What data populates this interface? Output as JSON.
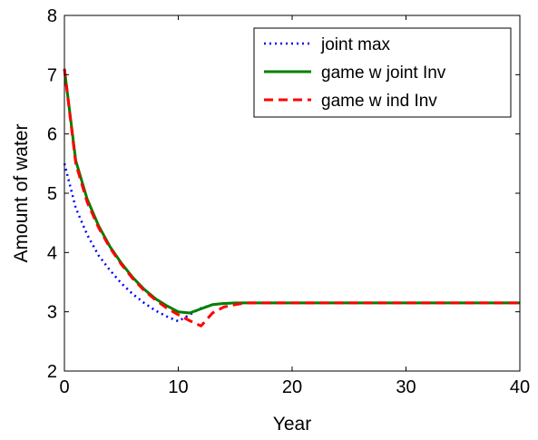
{
  "chart_data": {
    "type": "line",
    "title": "",
    "xlabel": "Year",
    "ylabel": "Amount of water",
    "xlim": [
      0,
      40
    ],
    "ylim": [
      2,
      8
    ],
    "xticks": [
      0,
      10,
      20,
      30,
      40
    ],
    "yticks": [
      2,
      3,
      4,
      5,
      6,
      7,
      8
    ],
    "grid": false,
    "legend_position": "top-right",
    "series": [
      {
        "name": "joint max",
        "color": "#0000ff",
        "style": "dotted",
        "x": [
          0,
          1,
          2,
          3,
          4,
          5,
          6,
          7,
          8,
          9,
          10,
          11,
          12,
          13,
          14,
          15,
          16,
          20,
          25,
          30,
          35,
          40
        ],
        "y": [
          5.5,
          4.75,
          4.3,
          3.95,
          3.7,
          3.48,
          3.3,
          3.15,
          3.02,
          2.92,
          2.84,
          2.95,
          3.06,
          3.12,
          3.14,
          3.15,
          3.15,
          3.15,
          3.15,
          3.15,
          3.15,
          3.15
        ]
      },
      {
        "name": "game w joint Inv",
        "color": "#008000",
        "style": "solid",
        "x": [
          0,
          1,
          2,
          3,
          4,
          5,
          6,
          7,
          8,
          9,
          10,
          11,
          12,
          13,
          14,
          15,
          16,
          20,
          25,
          30,
          35,
          40
        ],
        "y": [
          7.1,
          5.55,
          4.9,
          4.45,
          4.1,
          3.82,
          3.58,
          3.38,
          3.22,
          3.1,
          3.0,
          2.98,
          3.05,
          3.12,
          3.14,
          3.15,
          3.15,
          3.15,
          3.15,
          3.15,
          3.15,
          3.15
        ]
      },
      {
        "name": "game w ind Inv",
        "color": "#ff0000",
        "style": "dashed",
        "x": [
          0,
          1,
          2,
          3,
          4,
          5,
          6,
          7,
          8,
          9,
          10,
          11,
          12,
          13,
          14,
          15,
          16,
          20,
          25,
          30,
          35,
          40
        ],
        "y": [
          7.1,
          5.5,
          4.85,
          4.42,
          4.08,
          3.8,
          3.56,
          3.36,
          3.2,
          3.06,
          2.95,
          2.85,
          2.76,
          2.98,
          3.08,
          3.12,
          3.15,
          3.15,
          3.15,
          3.15,
          3.15,
          3.15
        ]
      }
    ]
  }
}
